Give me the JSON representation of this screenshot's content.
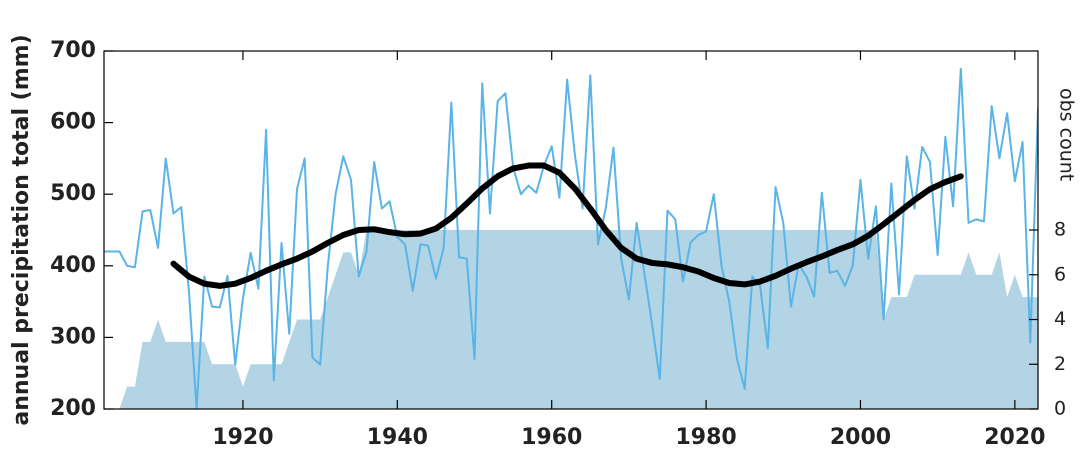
{
  "chart_data": {
    "type": "line",
    "ylabel": "annual precipitation total (mm)",
    "y2label": "obs count",
    "xlim": [
      1902,
      2023
    ],
    "xticks": [
      1920,
      1940,
      1960,
      1980,
      2000,
      2020
    ],
    "ylim": [
      200,
      700
    ],
    "yticks": [
      200,
      300,
      400,
      500,
      600,
      700
    ],
    "y2lim": [
      0,
      16
    ],
    "y2ticks": [
      0,
      2,
      4,
      6,
      8
    ],
    "series": [
      {
        "type": "area",
        "axis": "y2",
        "color": "#b3d4e4",
        "x": [
          1902,
          1903,
          1904,
          1905,
          1906,
          1907,
          1908,
          1909,
          1910,
          1911,
          1912,
          1913,
          1914,
          1915,
          1916,
          1917,
          1918,
          1919,
          1920,
          1921,
          1922,
          1923,
          1924,
          1925,
          1926,
          1927,
          1928,
          1929,
          1930,
          1931,
          1932,
          1933,
          1934,
          1935,
          1936,
          1937,
          1938,
          1939,
          1940,
          1941,
          1942,
          1943,
          1944,
          1945,
          1946,
          1947,
          1948,
          1949,
          1950,
          1951,
          1952,
          1953,
          1954,
          1955,
          1956,
          1957,
          1958,
          1959,
          1960,
          1961,
          1962,
          1963,
          1964,
          1965,
          1966,
          1967,
          1968,
          1969,
          1970,
          1971,
          1972,
          1973,
          1974,
          1975,
          1976,
          1977,
          1978,
          1979,
          1980,
          1981,
          1982,
          1983,
          1984,
          1985,
          1986,
          1987,
          1988,
          1989,
          1990,
          1991,
          1992,
          1993,
          1994,
          1995,
          1996,
          1997,
          1998,
          1999,
          2000,
          2001,
          2002,
          2003,
          2004,
          2005,
          2006,
          2007,
          2008,
          2009,
          2010,
          2011,
          2012,
          2013,
          2014,
          2015,
          2016,
          2017,
          2018,
          2019,
          2020,
          2021,
          2022,
          2023
        ],
        "values": [
          0,
          0,
          0,
          1,
          1,
          3,
          3,
          4,
          3,
          3,
          3,
          3,
          3,
          3,
          2,
          2,
          2,
          2,
          1,
          2,
          2,
          2,
          2,
          2,
          3,
          4,
          4,
          4,
          4,
          5,
          6,
          7,
          7,
          6,
          8,
          8,
          8,
          8,
          8,
          8,
          8,
          8,
          8,
          8,
          8,
          8,
          8,
          8,
          8,
          8,
          8,
          8,
          8,
          8,
          8,
          8,
          8,
          8,
          8,
          8,
          8,
          8,
          8,
          8,
          8,
          8,
          8,
          8,
          8,
          8,
          8,
          8,
          8,
          8,
          8,
          8,
          8,
          8,
          8,
          8,
          8,
          8,
          8,
          8,
          8,
          8,
          8,
          8,
          8,
          8,
          8,
          8,
          8,
          8,
          8,
          8,
          8,
          8,
          8,
          8,
          8,
          4,
          5,
          5,
          5,
          6,
          6,
          6,
          6,
          6,
          6,
          6,
          7,
          6,
          6,
          6,
          7,
          5,
          6,
          5,
          5,
          5
        ]
      },
      {
        "type": "line",
        "color": "#5ab4e5",
        "width": 2,
        "x": [
          1902,
          1903,
          1904,
          1905,
          1906,
          1907,
          1908,
          1909,
          1910,
          1911,
          1912,
          1913,
          1914,
          1915,
          1916,
          1917,
          1918,
          1919,
          1920,
          1921,
          1922,
          1923,
          1924,
          1925,
          1926,
          1927,
          1928,
          1929,
          1930,
          1931,
          1932,
          1933,
          1934,
          1935,
          1936,
          1937,
          1938,
          1939,
          1940,
          1941,
          1942,
          1943,
          1944,
          1945,
          1946,
          1947,
          1948,
          1949,
          1950,
          1951,
          1952,
          1953,
          1954,
          1955,
          1956,
          1957,
          1958,
          1959,
          1960,
          1961,
          1962,
          1963,
          1964,
          1965,
          1966,
          1967,
          1968,
          1969,
          1970,
          1971,
          1972,
          1973,
          1974,
          1975,
          1976,
          1977,
          1978,
          1979,
          1980,
          1981,
          1982,
          1983,
          1984,
          1985,
          1986,
          1987,
          1988,
          1989,
          1990,
          1991,
          1992,
          1993,
          1994,
          1995,
          1996,
          1997,
          1998,
          1999,
          2000,
          2001,
          2002,
          2003,
          2004,
          2005,
          2006,
          2007,
          2008,
          2009,
          2010,
          2011,
          2012,
          2013,
          2014,
          2015,
          2016,
          2017,
          2018,
          2019,
          2020,
          2021,
          2022,
          2023
        ],
        "values": [
          420,
          420,
          420,
          400,
          398,
          476,
          478,
          425,
          550,
          473,
          482,
          365,
          200,
          385,
          343,
          342,
          386,
          262,
          355,
          418,
          368,
          590,
          240,
          432,
          305,
          507,
          550,
          272,
          262,
          400,
          500,
          553,
          520,
          385,
          420,
          545,
          480,
          490,
          440,
          430,
          365,
          430,
          428,
          382,
          425,
          628,
          412,
          410,
          270,
          655,
          473,
          630,
          641,
          538,
          500,
          512,
          502,
          540,
          567,
          495,
          660,
          555,
          480,
          666,
          430,
          480,
          565,
          410,
          353,
          460,
          390,
          318,
          242,
          477,
          465,
          378,
          433,
          443,
          448,
          500,
          400,
          350,
          270,
          228,
          385,
          372,
          285,
          510,
          460,
          343,
          402,
          385,
          357,
          502,
          390,
          393,
          372,
          400,
          520,
          410,
          483,
          325,
          515,
          360,
          553,
          480,
          566,
          545,
          415,
          580,
          483,
          675,
          460,
          465,
          462,
          623,
          550,
          613,
          518,
          573,
          293,
          620
        ]
      },
      {
        "type": "line",
        "color": "#000000",
        "width": 6,
        "x": [
          1911,
          1913,
          1915,
          1917,
          1919,
          1921,
          1923,
          1925,
          1927,
          1929,
          1931,
          1933,
          1935,
          1937,
          1939,
          1941,
          1943,
          1945,
          1947,
          1949,
          1951,
          1953,
          1955,
          1957,
          1959,
          1961,
          1963,
          1965,
          1967,
          1969,
          1971,
          1973,
          1975,
          1977,
          1979,
          1981,
          1983,
          1985,
          1987,
          1989,
          1991,
          1993,
          1995,
          1997,
          1999,
          2001,
          2003,
          2005,
          2007,
          2009,
          2011,
          2013
        ],
        "values": [
          403,
          385,
          375,
          372,
          375,
          383,
          393,
          402,
          410,
          420,
          432,
          443,
          450,
          451,
          447,
          444,
          445,
          452,
          467,
          487,
          508,
          525,
          536,
          540,
          540,
          530,
          508,
          480,
          450,
          425,
          410,
          404,
          402,
          398,
          392,
          383,
          376,
          374,
          378,
          386,
          396,
          405,
          413,
          422,
          430,
          442,
          458,
          475,
          492,
          507,
          517,
          525
        ]
      }
    ]
  }
}
